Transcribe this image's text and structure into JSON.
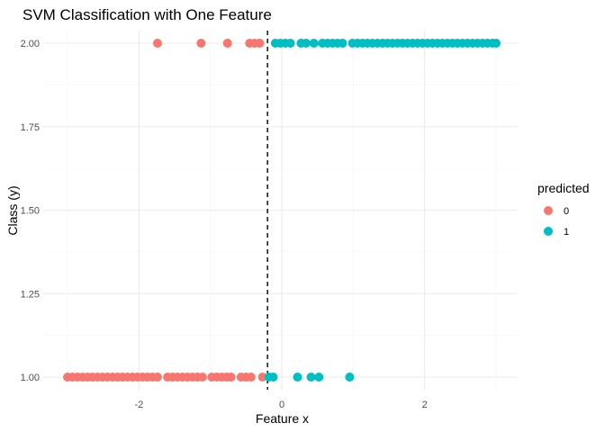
{
  "chart_data": {
    "type": "scatter",
    "title": "SVM Classification with One Feature",
    "xlabel": "Feature x",
    "ylabel": "Class (y)",
    "xlim": [
      -3.0,
      3.0
    ],
    "ylim": [
      1.0,
      2.0
    ],
    "x_ticks": [
      -2,
      0,
      2
    ],
    "x_tick_labels": [
      "-2",
      "0",
      "2"
    ],
    "y_ticks": [
      1.0,
      1.25,
      1.5,
      1.75,
      2.0
    ],
    "y_tick_labels": [
      "1.00",
      "1.25",
      "1.50",
      "1.75",
      "2.00"
    ],
    "grid": true,
    "legend": {
      "title": "predicted",
      "position": "right"
    },
    "decision_boundary": {
      "x": -0.2,
      "style": "dashed",
      "color": "#000000"
    },
    "series": [
      {
        "name": "0",
        "color": "#F8766D",
        "points": [
          {
            "x": -1.74,
            "y": 2
          },
          {
            "x": -1.13,
            "y": 2
          },
          {
            "x": -0.76,
            "y": 2
          },
          {
            "x": -0.45,
            "y": 2
          },
          {
            "x": -0.38,
            "y": 2
          },
          {
            "x": -0.31,
            "y": 2
          },
          {
            "x": -3.0,
            "y": 1
          },
          {
            "x": -2.93,
            "y": 1
          },
          {
            "x": -2.86,
            "y": 1
          },
          {
            "x": -2.79,
            "y": 1
          },
          {
            "x": -2.72,
            "y": 1
          },
          {
            "x": -2.65,
            "y": 1
          },
          {
            "x": -2.58,
            "y": 1
          },
          {
            "x": -2.51,
            "y": 1
          },
          {
            "x": -2.44,
            "y": 1
          },
          {
            "x": -2.37,
            "y": 1
          },
          {
            "x": -2.3,
            "y": 1
          },
          {
            "x": -2.23,
            "y": 1
          },
          {
            "x": -2.16,
            "y": 1
          },
          {
            "x": -2.09,
            "y": 1
          },
          {
            "x": -2.02,
            "y": 1
          },
          {
            "x": -1.95,
            "y": 1
          },
          {
            "x": -1.88,
            "y": 1
          },
          {
            "x": -1.81,
            "y": 1
          },
          {
            "x": -1.74,
            "y": 1
          },
          {
            "x": -1.6,
            "y": 1
          },
          {
            "x": -1.53,
            "y": 1
          },
          {
            "x": -1.46,
            "y": 1
          },
          {
            "x": -1.39,
            "y": 1
          },
          {
            "x": -1.32,
            "y": 1
          },
          {
            "x": -1.25,
            "y": 1
          },
          {
            "x": -1.18,
            "y": 1
          },
          {
            "x": -1.11,
            "y": 1
          },
          {
            "x": -0.98,
            "y": 1
          },
          {
            "x": -0.91,
            "y": 1
          },
          {
            "x": -0.84,
            "y": 1
          },
          {
            "x": -0.77,
            "y": 1
          },
          {
            "x": -0.71,
            "y": 1
          },
          {
            "x": -0.57,
            "y": 1
          },
          {
            "x": -0.5,
            "y": 1
          },
          {
            "x": -0.43,
            "y": 1
          },
          {
            "x": -0.27,
            "y": 1
          }
        ]
      },
      {
        "name": "1",
        "color": "#00BFC4",
        "points": [
          {
            "x": -0.09,
            "y": 2
          },
          {
            "x": -0.02,
            "y": 2
          },
          {
            "x": 0.05,
            "y": 2
          },
          {
            "x": 0.12,
            "y": 2
          },
          {
            "x": 0.27,
            "y": 2
          },
          {
            "x": 0.34,
            "y": 2
          },
          {
            "x": 0.45,
            "y": 2
          },
          {
            "x": 0.57,
            "y": 2
          },
          {
            "x": 0.64,
            "y": 2
          },
          {
            "x": 0.71,
            "y": 2
          },
          {
            "x": 0.78,
            "y": 2
          },
          {
            "x": 0.85,
            "y": 2
          },
          {
            "x": 0.99,
            "y": 2
          },
          {
            "x": 1.06,
            "y": 2
          },
          {
            "x": 1.13,
            "y": 2
          },
          {
            "x": 1.2,
            "y": 2
          },
          {
            "x": 1.27,
            "y": 2
          },
          {
            "x": 1.34,
            "y": 2
          },
          {
            "x": 1.41,
            "y": 2
          },
          {
            "x": 1.48,
            "y": 2
          },
          {
            "x": 1.55,
            "y": 2
          },
          {
            "x": 1.62,
            "y": 2
          },
          {
            "x": 1.69,
            "y": 2
          },
          {
            "x": 1.76,
            "y": 2
          },
          {
            "x": 1.83,
            "y": 2
          },
          {
            "x": 1.9,
            "y": 2
          },
          {
            "x": 1.97,
            "y": 2
          },
          {
            "x": 2.04,
            "y": 2
          },
          {
            "x": 2.11,
            "y": 2
          },
          {
            "x": 2.18,
            "y": 2
          },
          {
            "x": 2.25,
            "y": 2
          },
          {
            "x": 2.32,
            "y": 2
          },
          {
            "x": 2.39,
            "y": 2
          },
          {
            "x": 2.46,
            "y": 2
          },
          {
            "x": 2.53,
            "y": 2
          },
          {
            "x": 2.6,
            "y": 2
          },
          {
            "x": 2.67,
            "y": 2
          },
          {
            "x": 2.74,
            "y": 2
          },
          {
            "x": 2.81,
            "y": 2
          },
          {
            "x": 2.88,
            "y": 2
          },
          {
            "x": 2.95,
            "y": 2
          },
          {
            "x": 3.0,
            "y": 2
          },
          {
            "x": -0.18,
            "y": 1
          },
          {
            "x": -0.12,
            "y": 1
          },
          {
            "x": 0.22,
            "y": 1
          },
          {
            "x": 0.41,
            "y": 1
          },
          {
            "x": 0.52,
            "y": 1
          },
          {
            "x": 0.95,
            "y": 1
          }
        ]
      }
    ]
  }
}
